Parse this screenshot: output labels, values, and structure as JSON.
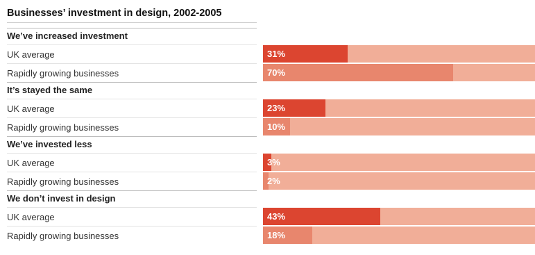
{
  "chart_data": {
    "type": "bar",
    "title": "Businesses’ investment in design, 2002-2005",
    "unit": "%",
    "xlim": [
      0,
      100
    ],
    "groups": [
      {
        "name": "We’ve increased investment",
        "rows": [
          {
            "label": "UK average",
            "value": 31
          },
          {
            "label": "Rapidly growing businesses",
            "value": 70
          }
        ]
      },
      {
        "name": "It’s stayed the same",
        "rows": [
          {
            "label": "UK average",
            "value": 23
          },
          {
            "label": "Rapidly growing businesses",
            "value": 10
          }
        ]
      },
      {
        "name": "We’ve invested less",
        "rows": [
          {
            "label": "UK average",
            "value": 3
          },
          {
            "label": "Rapidly growing businesses",
            "value": 2
          }
        ]
      },
      {
        "name": "We don’t invest in design",
        "rows": [
          {
            "label": "UK average",
            "value": 43
          },
          {
            "label": "Rapidly growing businesses",
            "value": 18
          }
        ]
      }
    ]
  },
  "colors": {
    "uk_average": "#dc4530",
    "rapidly_growing": "#e8866d",
    "track": "#f1ae98"
  }
}
